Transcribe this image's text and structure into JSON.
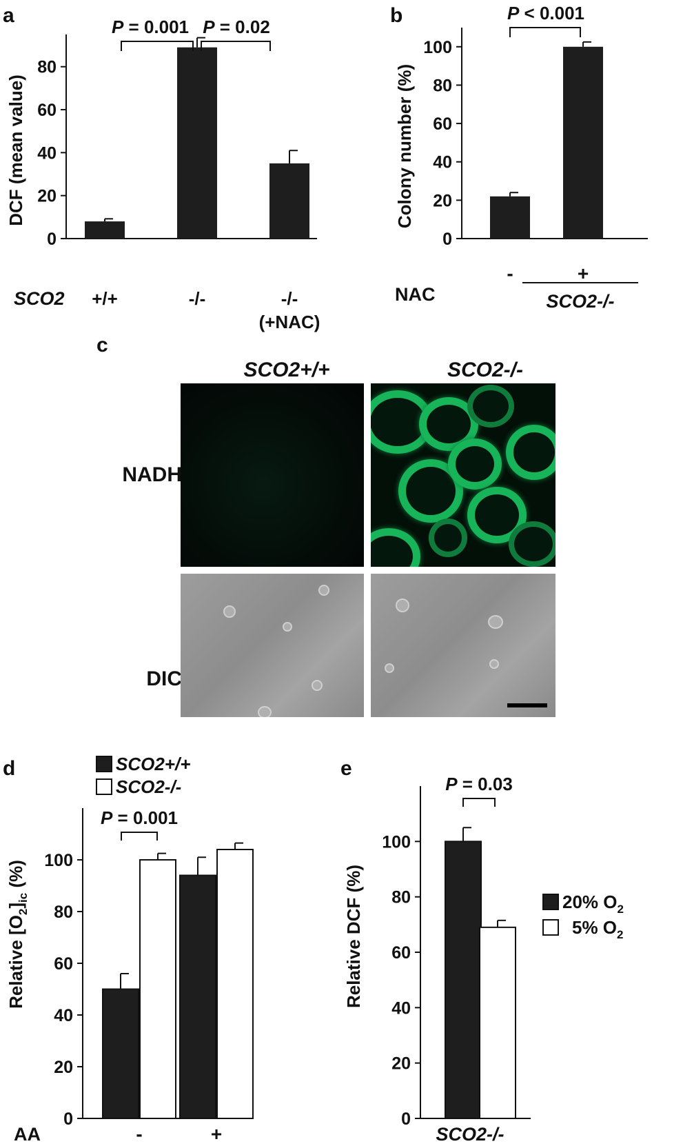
{
  "panel_letters": {
    "a": "a",
    "b": "b",
    "c": "c",
    "d": "d",
    "e": "e"
  },
  "colors": {
    "dark_bar": "#1e1e1e",
    "light_bar": "#ffffff",
    "axis": "#111111",
    "fluor": "#18b45a"
  },
  "chart_data": [
    {
      "panel": "a",
      "type": "bar",
      "ylabel": "DCF (mean value)",
      "ylim": [
        0,
        95
      ],
      "yticks": [
        0,
        20,
        40,
        60,
        80
      ],
      "row_label": "SCO2",
      "categories": [
        "+/+",
        "-/-",
        "-/-"
      ],
      "category_sublabels": [
        "",
        "",
        "(+NAC)"
      ],
      "values": [
        8,
        89,
        35
      ],
      "errors": [
        1.2,
        4.5,
        6
      ],
      "significance": [
        {
          "from": 0,
          "to": 1,
          "text": "P = 0.001"
        },
        {
          "from": 1,
          "to": 2,
          "text": "P = 0.02"
        }
      ]
    },
    {
      "panel": "b",
      "type": "bar",
      "ylabel": "Colony number (%)",
      "ylim": [
        0,
        110
      ],
      "yticks": [
        0,
        20,
        40,
        60,
        80,
        100
      ],
      "row_label": "NAC",
      "categories": [
        "-",
        "+"
      ],
      "group_label": "SCO2-/-",
      "values": [
        22,
        100
      ],
      "errors": [
        2,
        2.5
      ],
      "significance": [
        {
          "from": 0,
          "to": 1,
          "text": "P < 0.001"
        }
      ]
    },
    {
      "panel": "d",
      "type": "bar",
      "ylabel_prefix": "Relative [O",
      "ylabel_sub1": "2",
      "ylabel_mid": "]",
      "ylabel_sub2": "ic",
      "ylabel_suffix": " (%)",
      "ylim": [
        0,
        120
      ],
      "yticks": [
        0,
        20,
        40,
        60,
        80,
        100
      ],
      "row_label": "AA",
      "categories": [
        "-",
        "+"
      ],
      "series": [
        {
          "name": "SCO2+/+",
          "fill": "#1e1e1e",
          "values": [
            50,
            94
          ],
          "errors": [
            6,
            7
          ]
        },
        {
          "name": "SCO2-/-",
          "fill": "#ffffff",
          "values": [
            100,
            104
          ],
          "errors": [
            2.5,
            2.5
          ]
        }
      ],
      "legend": "top-left",
      "significance": [
        {
          "text": "P = 0.001"
        }
      ]
    },
    {
      "panel": "e",
      "type": "bar",
      "ylabel": "Relative DCF (%)",
      "ylim": [
        0,
        120
      ],
      "yticks": [
        0,
        20,
        40,
        60,
        80,
        100
      ],
      "group_label": "SCO2-/-",
      "series": [
        {
          "name_prefix": "20% O",
          "name_sub": "2",
          "fill": "#1e1e1e",
          "values": [
            100
          ],
          "errors": [
            5
          ]
        },
        {
          "name_prefix": "5% O",
          "name_sub": "2",
          "fill": "#ffffff",
          "values": [
            69
          ],
          "errors": [
            2.5
          ]
        }
      ],
      "legend": "right",
      "significance": [
        {
          "text": "P = 0.03"
        }
      ]
    }
  ],
  "panel_c": {
    "col_labels": [
      "SCO2+/+",
      "SCO2-/-"
    ],
    "row_labels": [
      "NADH",
      "DIC"
    ]
  }
}
